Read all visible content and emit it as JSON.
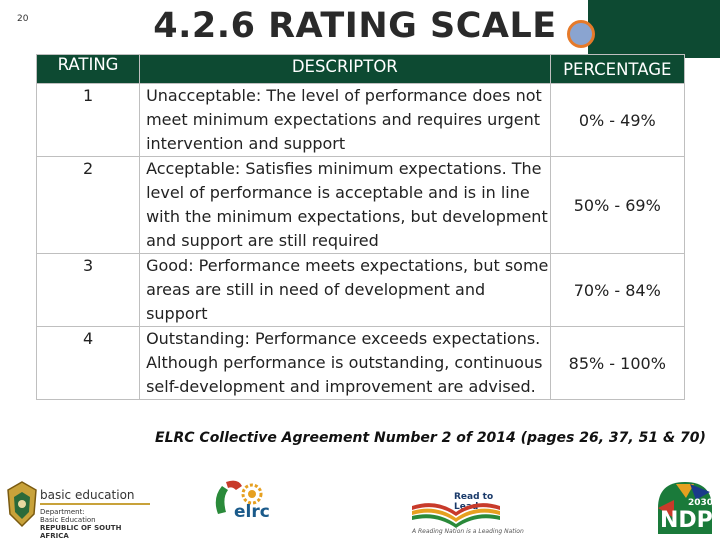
{
  "page_number": "20",
  "title": "4.2.6 RATING SCALE",
  "table": {
    "headers": [
      "RATING",
      "DESCRIPTOR",
      "PERCENTAGE"
    ],
    "rows": [
      {
        "rating": "1",
        "descriptor": "Unacceptable: The level of performance does not meet minimum expectations and requires urgent intervention and support",
        "percentage": "0% - 49%"
      },
      {
        "rating": "2",
        "descriptor": "Acceptable: Satisfies minimum expectations. The level of performance is acceptable and is in line with the minimum expectations, but development and support are still required",
        "percentage": "50% - 69%"
      },
      {
        "rating": "3",
        "descriptor": "Good: Performance meets expectations, but some areas are still in need of development and support",
        "percentage": "70% - 84%"
      },
      {
        "rating": "4",
        "descriptor": "Outstanding: Performance exceeds expectations. Although performance is outstanding, continuous self-development and improvement are advised.",
        "percentage": "85% - 100%"
      }
    ]
  },
  "citation": "ELRC Collective Agreement Number 2 of 2014 (pages 26, 37, 51 & 70)",
  "footer": {
    "dbe_title": "basic education",
    "dbe_line1": "Department:",
    "dbe_line2": "Basic Education",
    "dbe_line3": "REPUBLIC OF SOUTH AFRICA",
    "elrc_text": "elrc",
    "read_title": "Read to Lead",
    "read_tagline": "A Reading Nation is a Leading Nation",
    "ndp_year": "2030",
    "ndp_text": "NDP"
  },
  "colors": {
    "header_bg": "#0d4a32",
    "accent_orange": "#e67a2a",
    "circle_fill": "#8aa4d0"
  }
}
